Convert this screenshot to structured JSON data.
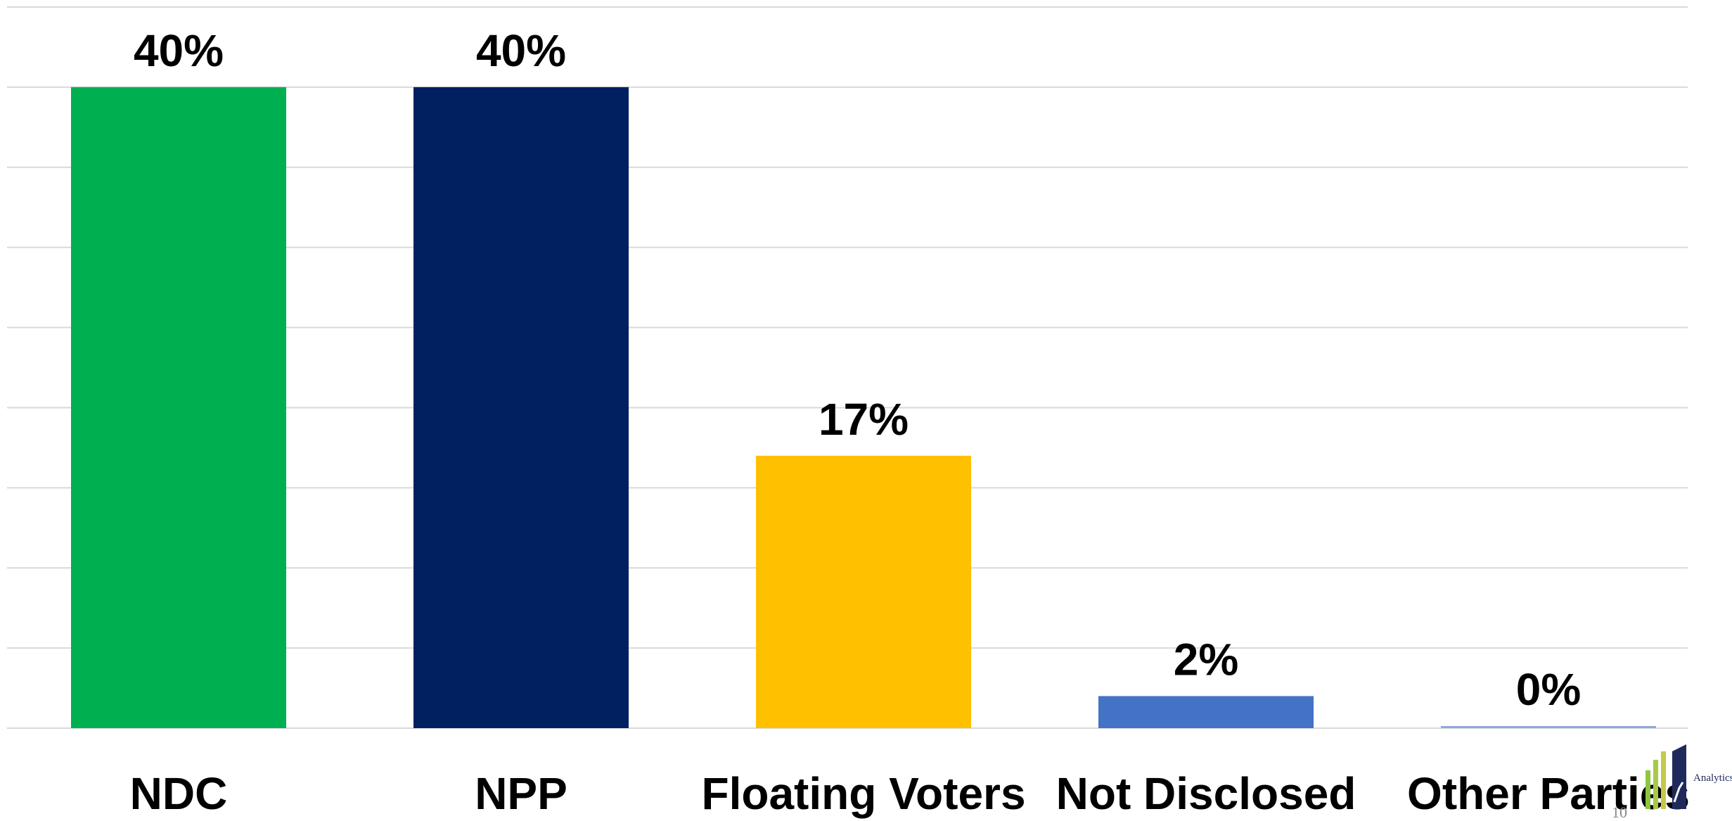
{
  "chart_data": {
    "type": "bar",
    "categories": [
      "NDC",
      "NPP",
      "Floating Voters",
      "Not Disclosed",
      "Other Parties"
    ],
    "values": [
      40,
      40,
      17,
      2,
      0
    ],
    "data_labels": [
      "40%",
      "40%",
      "17%",
      "2%",
      "0%"
    ],
    "colors": [
      "#00b050",
      "#002060",
      "#ffc000",
      "#4472c4",
      "#8ea9db"
    ],
    "unit": "%",
    "ylim": [
      0,
      45
    ],
    "grid": true,
    "legend": "none"
  },
  "logo": {
    "text": "Analytics",
    "icon": "bar-chart-arrow-logo-icon"
  },
  "page_number": "10"
}
